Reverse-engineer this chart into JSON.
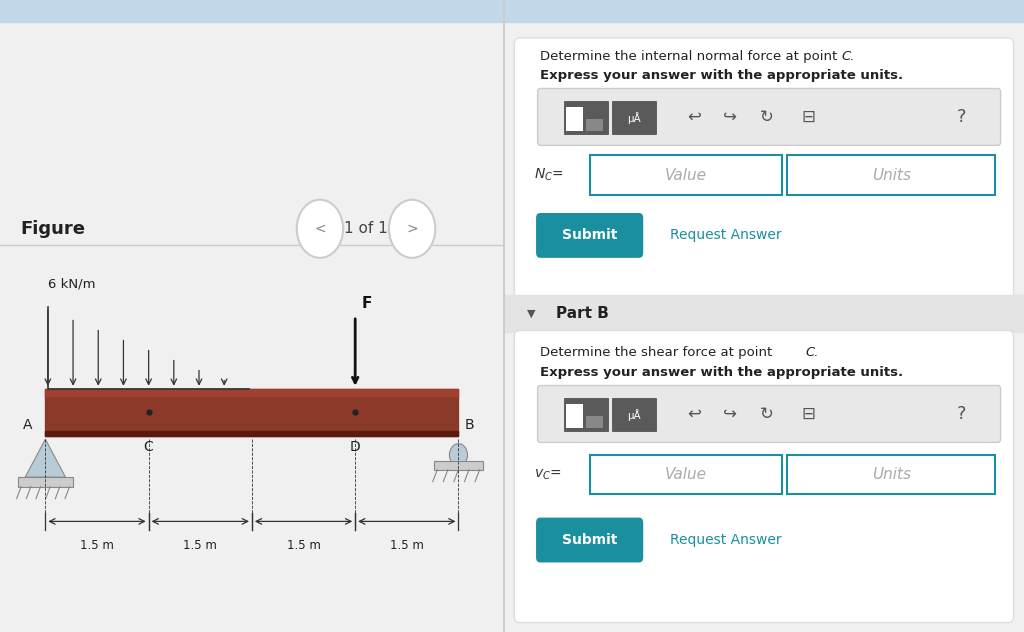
{
  "bg_color": "#f0f0f0",
  "left_panel_bg": "#ffffff",
  "right_panel_bg": "#f0f0f0",
  "divider_color": "#d0d0d0",
  "figure_label": "Figure",
  "figure_nav": "1 of 1",
  "beam_color": "#8B3A2A",
  "beam_highlight": "#a04030",
  "beam_dark": "#5a1a10",
  "load_label": "6 kN/m",
  "force_label": "F",
  "point_a": "A",
  "point_b": "B",
  "point_c": "C",
  "point_d": "D",
  "dims": [
    "1.5 m",
    "1.5 m",
    "1.5 m",
    "1.5 m"
  ],
  "teal_color": "#1a8fa0",
  "submit_color": "#1a8fa0",
  "part_b_label": "Part B",
  "text_normal_force": "Determine the internal normal force at point ",
  "text_normal_force_c": "C.",
  "text_express_1": "Express your answer with the appropriate units.",
  "text_shear_force": "Determine the shear force at point ",
  "text_shear_force_c": "C.",
  "text_express_2": "Express your answer with the appropriate units.",
  "value_placeholder": "Value",
  "units_placeholder": "Units",
  "submit_text": "Submit",
  "request_text": "Request Answer",
  "input_border": "#1a8fa0",
  "toolbar_bg": "#e8e8e8",
  "card_border": "#dddddd",
  "top_bar_color": "#c0d8e8"
}
